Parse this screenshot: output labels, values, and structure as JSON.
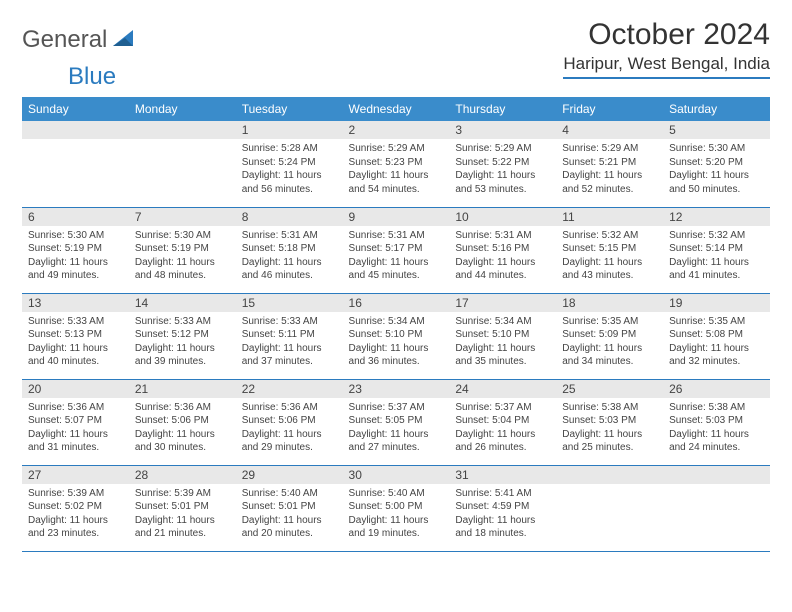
{
  "colors": {
    "header_bg": "#3a8ccb",
    "header_text": "#ffffff",
    "daynum_bg": "#e8e8e8",
    "border": "#2b7bbf",
    "body_text": "#444444",
    "page_bg": "#ffffff"
  },
  "logo": {
    "text_gray": "General",
    "text_blue": "Blue"
  },
  "title": "October 2024",
  "location": "Haripur, West Bengal, India",
  "day_headers": [
    "Sunday",
    "Monday",
    "Tuesday",
    "Wednesday",
    "Thursday",
    "Friday",
    "Saturday"
  ],
  "weeks": [
    [
      {
        "n": "",
        "lines": []
      },
      {
        "n": "",
        "lines": []
      },
      {
        "n": "1",
        "lines": [
          "Sunrise: 5:28 AM",
          "Sunset: 5:24 PM",
          "Daylight: 11 hours",
          "and 56 minutes."
        ]
      },
      {
        "n": "2",
        "lines": [
          "Sunrise: 5:29 AM",
          "Sunset: 5:23 PM",
          "Daylight: 11 hours",
          "and 54 minutes."
        ]
      },
      {
        "n": "3",
        "lines": [
          "Sunrise: 5:29 AM",
          "Sunset: 5:22 PM",
          "Daylight: 11 hours",
          "and 53 minutes."
        ]
      },
      {
        "n": "4",
        "lines": [
          "Sunrise: 5:29 AM",
          "Sunset: 5:21 PM",
          "Daylight: 11 hours",
          "and 52 minutes."
        ]
      },
      {
        "n": "5",
        "lines": [
          "Sunrise: 5:30 AM",
          "Sunset: 5:20 PM",
          "Daylight: 11 hours",
          "and 50 minutes."
        ]
      }
    ],
    [
      {
        "n": "6",
        "lines": [
          "Sunrise: 5:30 AM",
          "Sunset: 5:19 PM",
          "Daylight: 11 hours",
          "and 49 minutes."
        ]
      },
      {
        "n": "7",
        "lines": [
          "Sunrise: 5:30 AM",
          "Sunset: 5:19 PM",
          "Daylight: 11 hours",
          "and 48 minutes."
        ]
      },
      {
        "n": "8",
        "lines": [
          "Sunrise: 5:31 AM",
          "Sunset: 5:18 PM",
          "Daylight: 11 hours",
          "and 46 minutes."
        ]
      },
      {
        "n": "9",
        "lines": [
          "Sunrise: 5:31 AM",
          "Sunset: 5:17 PM",
          "Daylight: 11 hours",
          "and 45 minutes."
        ]
      },
      {
        "n": "10",
        "lines": [
          "Sunrise: 5:31 AM",
          "Sunset: 5:16 PM",
          "Daylight: 11 hours",
          "and 44 minutes."
        ]
      },
      {
        "n": "11",
        "lines": [
          "Sunrise: 5:32 AM",
          "Sunset: 5:15 PM",
          "Daylight: 11 hours",
          "and 43 minutes."
        ]
      },
      {
        "n": "12",
        "lines": [
          "Sunrise: 5:32 AM",
          "Sunset: 5:14 PM",
          "Daylight: 11 hours",
          "and 41 minutes."
        ]
      }
    ],
    [
      {
        "n": "13",
        "lines": [
          "Sunrise: 5:33 AM",
          "Sunset: 5:13 PM",
          "Daylight: 11 hours",
          "and 40 minutes."
        ]
      },
      {
        "n": "14",
        "lines": [
          "Sunrise: 5:33 AM",
          "Sunset: 5:12 PM",
          "Daylight: 11 hours",
          "and 39 minutes."
        ]
      },
      {
        "n": "15",
        "lines": [
          "Sunrise: 5:33 AM",
          "Sunset: 5:11 PM",
          "Daylight: 11 hours",
          "and 37 minutes."
        ]
      },
      {
        "n": "16",
        "lines": [
          "Sunrise: 5:34 AM",
          "Sunset: 5:10 PM",
          "Daylight: 11 hours",
          "and 36 minutes."
        ]
      },
      {
        "n": "17",
        "lines": [
          "Sunrise: 5:34 AM",
          "Sunset: 5:10 PM",
          "Daylight: 11 hours",
          "and 35 minutes."
        ]
      },
      {
        "n": "18",
        "lines": [
          "Sunrise: 5:35 AM",
          "Sunset: 5:09 PM",
          "Daylight: 11 hours",
          "and 34 minutes."
        ]
      },
      {
        "n": "19",
        "lines": [
          "Sunrise: 5:35 AM",
          "Sunset: 5:08 PM",
          "Daylight: 11 hours",
          "and 32 minutes."
        ]
      }
    ],
    [
      {
        "n": "20",
        "lines": [
          "Sunrise: 5:36 AM",
          "Sunset: 5:07 PM",
          "Daylight: 11 hours",
          "and 31 minutes."
        ]
      },
      {
        "n": "21",
        "lines": [
          "Sunrise: 5:36 AM",
          "Sunset: 5:06 PM",
          "Daylight: 11 hours",
          "and 30 minutes."
        ]
      },
      {
        "n": "22",
        "lines": [
          "Sunrise: 5:36 AM",
          "Sunset: 5:06 PM",
          "Daylight: 11 hours",
          "and 29 minutes."
        ]
      },
      {
        "n": "23",
        "lines": [
          "Sunrise: 5:37 AM",
          "Sunset: 5:05 PM",
          "Daylight: 11 hours",
          "and 27 minutes."
        ]
      },
      {
        "n": "24",
        "lines": [
          "Sunrise: 5:37 AM",
          "Sunset: 5:04 PM",
          "Daylight: 11 hours",
          "and 26 minutes."
        ]
      },
      {
        "n": "25",
        "lines": [
          "Sunrise: 5:38 AM",
          "Sunset: 5:03 PM",
          "Daylight: 11 hours",
          "and 25 minutes."
        ]
      },
      {
        "n": "26",
        "lines": [
          "Sunrise: 5:38 AM",
          "Sunset: 5:03 PM",
          "Daylight: 11 hours",
          "and 24 minutes."
        ]
      }
    ],
    [
      {
        "n": "27",
        "lines": [
          "Sunrise: 5:39 AM",
          "Sunset: 5:02 PM",
          "Daylight: 11 hours",
          "and 23 minutes."
        ]
      },
      {
        "n": "28",
        "lines": [
          "Sunrise: 5:39 AM",
          "Sunset: 5:01 PM",
          "Daylight: 11 hours",
          "and 21 minutes."
        ]
      },
      {
        "n": "29",
        "lines": [
          "Sunrise: 5:40 AM",
          "Sunset: 5:01 PM",
          "Daylight: 11 hours",
          "and 20 minutes."
        ]
      },
      {
        "n": "30",
        "lines": [
          "Sunrise: 5:40 AM",
          "Sunset: 5:00 PM",
          "Daylight: 11 hours",
          "and 19 minutes."
        ]
      },
      {
        "n": "31",
        "lines": [
          "Sunrise: 5:41 AM",
          "Sunset: 4:59 PM",
          "Daylight: 11 hours",
          "and 18 minutes."
        ]
      },
      {
        "n": "",
        "lines": []
      },
      {
        "n": "",
        "lines": []
      }
    ]
  ]
}
